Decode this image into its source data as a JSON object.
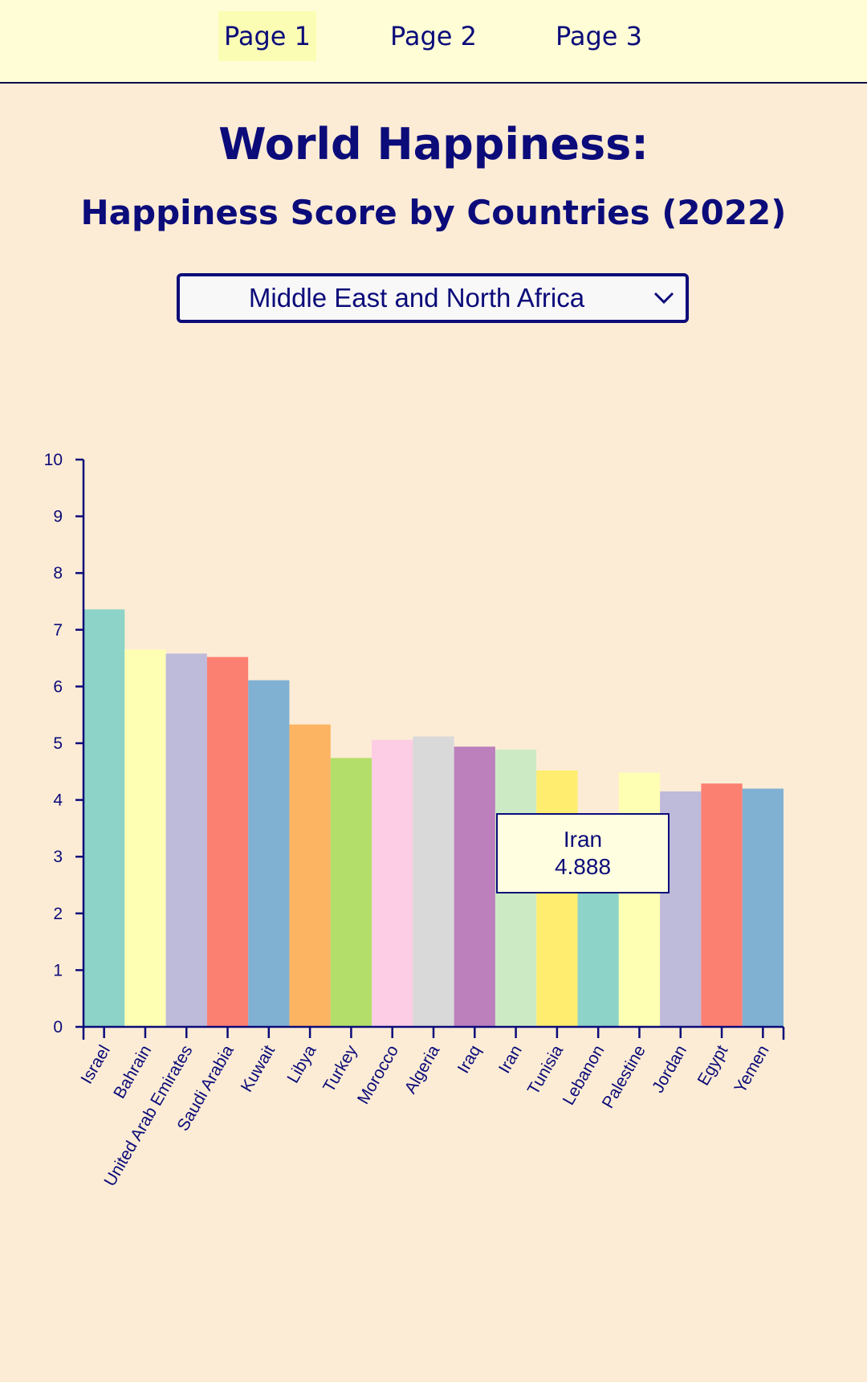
{
  "nav": {
    "items": [
      {
        "label": "Page 1",
        "active": true
      },
      {
        "label": "Page 2",
        "active": false
      },
      {
        "label": "Page 3",
        "active": false
      }
    ]
  },
  "header": {
    "title": "World Happiness:",
    "subtitle": "Happiness Score by Countries (2022)"
  },
  "region_select": {
    "value": "Middle East and North Africa"
  },
  "tooltip": {
    "country": "Iran",
    "value": "4.888"
  },
  "colors": {
    "text": "#0b0b7a",
    "page_bg": "#fdecd5",
    "nav_bg": "#fffdd6"
  },
  "chart_data": {
    "type": "bar",
    "title": "Happiness Score by Countries (2022)",
    "xlabel": "",
    "ylabel": "",
    "ylim": [
      0,
      10
    ],
    "yticks": [
      0,
      1,
      2,
      3,
      4,
      5,
      6,
      7,
      8,
      9,
      10
    ],
    "grid": false,
    "categories": [
      "Israel",
      "Bahrain",
      "United Arab Emirates",
      "Saudi Arabia",
      "Kuwait",
      "Libya",
      "Turkey",
      "Morocco",
      "Algeria",
      "Iraq",
      "Iran",
      "Tunisia",
      "Lebanon",
      "Palestine",
      "Jordan",
      "Egypt",
      "Yemen"
    ],
    "values": [
      7.36,
      6.65,
      6.58,
      6.52,
      6.11,
      5.33,
      4.74,
      5.06,
      5.12,
      4.94,
      4.888,
      4.52,
      2.95,
      4.48,
      4.15,
      4.29,
      4.2
    ],
    "bar_colors": [
      "#8dd3c7",
      "#ffffb3",
      "#bebada",
      "#fb8072",
      "#80b1d3",
      "#fdb462",
      "#b3de69",
      "#fccde5",
      "#d9d9d9",
      "#bc80bd",
      "#ccebc5",
      "#ffed6f",
      "#8dd3c7",
      "#ffffb3",
      "#bebada",
      "#fb8072",
      "#80b1d3"
    ]
  }
}
